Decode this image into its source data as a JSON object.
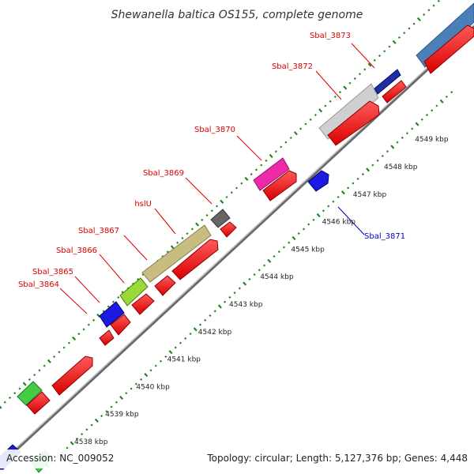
{
  "title": "Shewanella baltica OS155, complete genome",
  "footer": {
    "accession": "Accession: NC_009052",
    "summary": "Topology: circular; Length: 5,127,376 bp; Genes: 4,448"
  },
  "colors": {
    "backbone": "#9a9a9a",
    "tick": "#1a8a1a",
    "label_red": "#dd0000",
    "label_blue": "#0000cc"
  },
  "kbp_labels": [
    "4538 kbp",
    "4539 kbp",
    "4540 kbp",
    "4541 kbp",
    "4542 kbp",
    "4543 kbp",
    "4544 kbp",
    "4545 kbp",
    "4546 kbp",
    "4547 kbp",
    "4548 kbp",
    "4549 kbp"
  ],
  "gene_labels": [
    {
      "id": "g3873",
      "text": "Sbal_3873",
      "color": "#dd0000"
    },
    {
      "id": "g3872",
      "text": "Sbal_3872",
      "color": "#dd0000"
    },
    {
      "id": "g3870",
      "text": "Sbal_3870",
      "color": "#dd0000"
    },
    {
      "id": "g3869",
      "text": "Sbal_3869",
      "color": "#dd0000"
    },
    {
      "id": "ghslU",
      "text": "hslU",
      "color": "#dd0000"
    },
    {
      "id": "g3867",
      "text": "Sbal_3867",
      "color": "#dd0000"
    },
    {
      "id": "g3866",
      "text": "Sbal_3866",
      "color": "#dd0000"
    },
    {
      "id": "g3865",
      "text": "Sbal_3865",
      "color": "#dd0000"
    },
    {
      "id": "g3864",
      "text": "Sbal_3864",
      "color": "#dd0000"
    },
    {
      "id": "g3871",
      "text": "Sbal_3871",
      "color": "#0000cc"
    }
  ]
}
